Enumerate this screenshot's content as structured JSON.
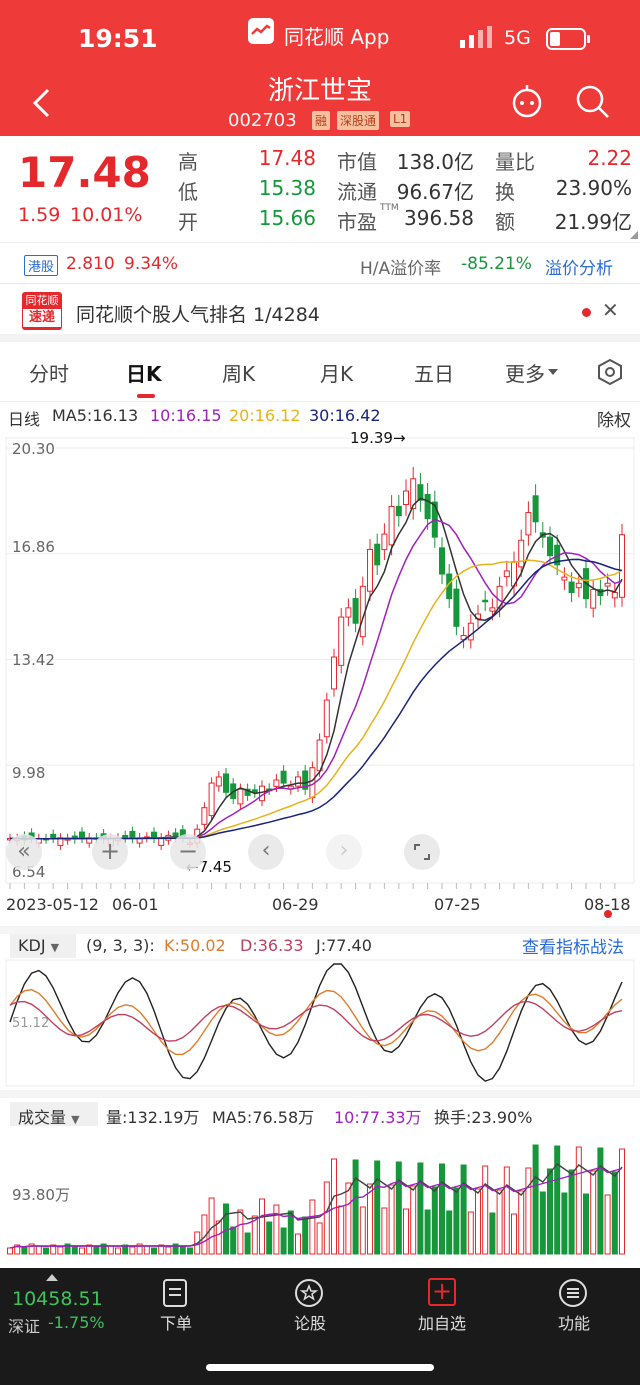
{
  "status_bar": {
    "time": "19:51",
    "app_label": "同花顺 App",
    "network": "5G"
  },
  "header": {
    "name": "浙江世宝",
    "code": "002703",
    "tags": [
      "融",
      "深股通",
      "L1"
    ]
  },
  "quote": {
    "price": "17.48",
    "change": "1.59",
    "change_pct": "10.01%",
    "rows": [
      {
        "l1": "高",
        "v1": "17.48",
        "l2": "市值",
        "v2": "138.0亿",
        "l3": "量比",
        "v3": "2.22"
      },
      {
        "l1": "低",
        "v1": "15.38",
        "l2": "流通",
        "v2": "96.67亿",
        "l3": "换",
        "v3": "23.90%"
      },
      {
        "l1": "开",
        "v1": "15.66",
        "l2": "市盈",
        "v2": "396.58",
        "l3": "额",
        "v3": "21.99亿"
      }
    ],
    "pe_sup": "TTM"
  },
  "hk": {
    "tag": "港股",
    "price": "2.810",
    "pct": "9.34%",
    "premium_label": "H/A溢价率",
    "premium": "-85.21%",
    "analysis": "溢价分析"
  },
  "banner": {
    "logo_top": "同花顺",
    "logo_bottom": "速递",
    "text": "同花顺个股人气排名 1/4284"
  },
  "tabs": [
    "分时",
    "日K",
    "周K",
    "月K",
    "五日",
    "更多"
  ],
  "kline": {
    "legend_title": "日线",
    "ma5": "MA5:16.13",
    "ma10": "10:16.15",
    "ma20": "20:16.12",
    "ma30": "30:16.42",
    "adjust": "除权",
    "y_ticks": [
      "20.30",
      "16.86",
      "13.42",
      "9.98",
      "6.54"
    ],
    "x_ticks": [
      "2023-05-12",
      "06-01",
      "06-29",
      "07-25",
      "08-18"
    ],
    "high_mark": "19.39→",
    "low_mark": "←7.45"
  },
  "kdj": {
    "name": "KDJ",
    "params": "(9, 3, 3):",
    "k": "K:50.02",
    "d": "D:36.33",
    "j": "J:77.40",
    "link": "查看指标战法",
    "y_tick": "51.12"
  },
  "volume": {
    "name": "成交量",
    "vol": "量:132.19万",
    "ma5": "MA5:76.58万",
    "ma10": "10:77.33万",
    "turnover": "换手:23.90%",
    "y_tick": "93.80万"
  },
  "bottom_nav": {
    "index_value": "10458.51",
    "index_name": "深证",
    "index_pct": "-1.75%",
    "items": [
      "下单",
      "论股",
      "加自选",
      "功能"
    ]
  },
  "colors": {
    "brand": "#ef3a3a",
    "up": "#e4282c",
    "down": "#16973a",
    "ma5": "#333333",
    "ma10": "#a020c0",
    "ma20": "#e8b21c",
    "ma30": "#1a237e"
  }
}
